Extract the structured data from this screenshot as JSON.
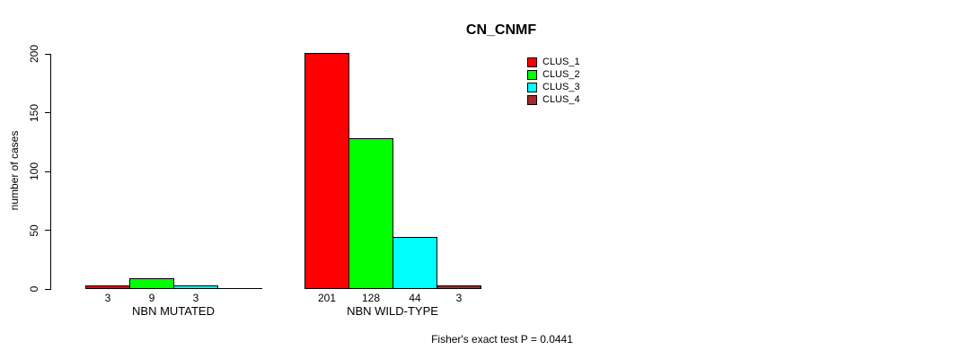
{
  "chart_data": {
    "type": "bar",
    "title": "CN_CNMF",
    "ylabel": "number of cases",
    "xlabel": "",
    "ylim": [
      0,
      200
    ],
    "yticks": [
      0,
      50,
      100,
      150,
      200
    ],
    "categories": [
      "NBN MUTATED",
      "NBN WILD-TYPE"
    ],
    "series": [
      {
        "name": "CLUS_1",
        "color": "#FF0000",
        "values": [
          3,
          201
        ]
      },
      {
        "name": "CLUS_2",
        "color": "#00FF00",
        "values": [
          9,
          128
        ]
      },
      {
        "name": "CLUS_3",
        "color": "#00FFFF",
        "values": [
          3,
          44
        ]
      },
      {
        "name": "CLUS_4",
        "color": "#A52A2A",
        "values": [
          0,
          3
        ]
      }
    ],
    "bar_value_labels": [
      [
        "3",
        "9",
        "3",
        ""
      ],
      [
        "201",
        "128",
        "44",
        "3"
      ]
    ],
    "legend_position": "top-right",
    "grid": false,
    "annotation": "Fisher's exact test P = 0.0441"
  }
}
